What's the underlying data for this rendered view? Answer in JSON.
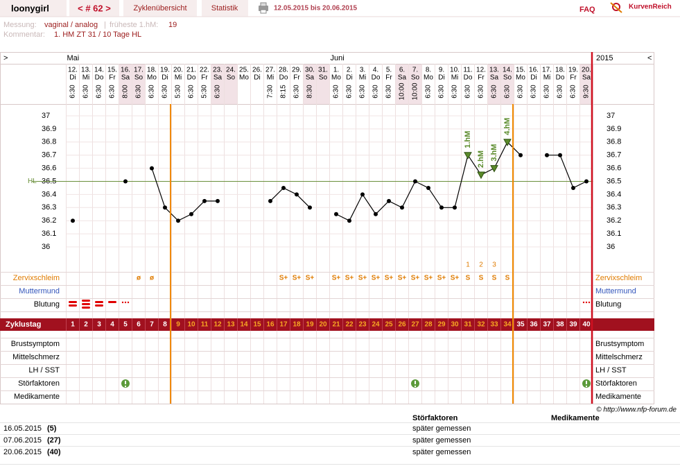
{
  "header": {
    "user": "loonygirl",
    "cycle": "< # 62 >",
    "tabs": [
      "Zyklenübersicht",
      "Statistik"
    ],
    "period": "12.05.2015 bis 20.06.2015",
    "faq": "FAQ",
    "logo": "KurvenReich"
  },
  "info": {
    "messung_label": "Messung:",
    "messung": "vaginal / analog",
    "separator": "|",
    "earliest_label": "früheste 1.hM:",
    "earliest": 19,
    "comment_label": "Kommentar:",
    "comment": "1. HM ZT 31 / 10 Tage HL"
  },
  "chart_data": {
    "type": "line",
    "nav_prev": ">",
    "nav_next": "<",
    "year": "2015",
    "months": [
      "Mai",
      null,
      null,
      null,
      null,
      null,
      null,
      null,
      null,
      null,
      null,
      null,
      null,
      null,
      null,
      null,
      null,
      null,
      null,
      null,
      "Juni",
      null,
      null,
      null,
      null,
      null,
      null,
      null,
      null,
      null,
      null,
      null,
      null,
      null,
      null,
      null,
      null,
      null,
      null,
      null
    ],
    "categories": [
      "12.",
      "13.",
      "14.",
      "15.",
      "16.",
      "17.",
      "18.",
      "19.",
      "20.",
      "21.",
      "22.",
      "23.",
      "24.",
      "25.",
      "26.",
      "27.",
      "28.",
      "29.",
      "30.",
      "31.",
      "1.",
      "2.",
      "3.",
      "4.",
      "5.",
      "6.",
      "7.",
      "8.",
      "9.",
      "10.",
      "11.",
      "12.",
      "13.",
      "14.",
      "15.",
      "16.",
      "17.",
      "18.",
      "19.",
      "20."
    ],
    "weekdays": [
      "Di",
      "Mi",
      "Do",
      "Fr",
      "Sa",
      "So",
      "Mo",
      "Di",
      "Mi",
      "Do",
      "Fr",
      "Sa",
      "So",
      "Mo",
      "Di",
      "Mi",
      "Do",
      "Fr",
      "Sa",
      "So",
      "Mo",
      "Di",
      "Mi",
      "Do",
      "Fr",
      "Sa",
      "So",
      "Mo",
      "Di",
      "Mi",
      "Do",
      "Fr",
      "Sa",
      "So",
      "Mo",
      "Di",
      "Mi",
      "Do",
      "Fr",
      "Sa"
    ],
    "column_shade": [
      null,
      null,
      null,
      null,
      "#f2e2e6",
      "#f2e2e6",
      null,
      null,
      null,
      null,
      null,
      "#f2e2e6",
      "#f2e2e6",
      null,
      null,
      null,
      null,
      null,
      "#f2e2e6",
      "#f2e2e6",
      null,
      null,
      null,
      null,
      null,
      "#f2e2e6",
      "#f2e2e6",
      null,
      null,
      null,
      null,
      null,
      "#f2e2e6",
      "#f2e2e6",
      null,
      null,
      null,
      null,
      null,
      "#f2e2e6"
    ],
    "times": [
      "6:30",
      "6:30",
      "6:30",
      "6:30",
      "8:00",
      "6:30",
      "6:30",
      "6:30",
      "5:30",
      "6:30",
      "5:30",
      "6:30",
      null,
      null,
      null,
      "7:30",
      "8:15",
      "6:30",
      "8:30",
      null,
      "6:30",
      "6:30",
      "6:30",
      "6:30",
      "6:30",
      "10:00",
      "10:00",
      "6:30",
      "6:30",
      "6:30",
      "6:30",
      "6:30",
      "6:30",
      "6:30",
      "6:30",
      "6:30",
      "6:30",
      "6:30",
      "6:30",
      "9:30"
    ],
    "series": [
      {
        "color": "#000000",
        "values": [
          36.2,
          null,
          null,
          null,
          36.5,
          null,
          36.6,
          36.3,
          36.2,
          36.25,
          36.35,
          36.35,
          null,
          null,
          null,
          36.35,
          36.45,
          36.4,
          36.3,
          null,
          36.25,
          36.2,
          36.4,
          36.25,
          36.35,
          36.3,
          36.5,
          36.45,
          36.3,
          36.3,
          36.7,
          36.55,
          36.6,
          36.8,
          36.7,
          null,
          36.7,
          36.7,
          36.45,
          36.5
        ]
      }
    ],
    "hm_labels": [
      null,
      null,
      null,
      null,
      null,
      null,
      null,
      null,
      null,
      null,
      null,
      null,
      null,
      null,
      null,
      null,
      null,
      null,
      null,
      null,
      null,
      null,
      null,
      null,
      null,
      null,
      null,
      null,
      null,
      null,
      "1.hM",
      "2.hM",
      "3.hM",
      "4.hM",
      null,
      null,
      null,
      null,
      null,
      null
    ],
    "hm_color": "#5a8a2a",
    "ylim": [
      36,
      37
    ],
    "yticks": [
      36,
      36.1,
      36.2,
      36.3,
      36.4,
      36.5,
      36.6,
      36.7,
      36.8,
      36.9,
      37
    ],
    "grid": true,
    "hl": {
      "value": 36.5,
      "label": "HL",
      "color": "#6a8f3a"
    },
    "side_rows": [
      "Zervixschleim",
      "Muttermund",
      "Blutung"
    ],
    "side_row_colors": [
      "#e07b00",
      "#3355bb",
      "#000000"
    ],
    "mucus": [
      null,
      null,
      null,
      null,
      null,
      "ø",
      "ø",
      null,
      null,
      null,
      null,
      null,
      null,
      null,
      null,
      null,
      "S+",
      "S+",
      "S+",
      null,
      "S+",
      "S+",
      "S+",
      "S+",
      "S+",
      "S+",
      "S+",
      "S+",
      "S+",
      "S+",
      "S",
      "S",
      "S",
      "S",
      null,
      null,
      null,
      null,
      null,
      null
    ],
    "mucus_numbers": [
      null,
      null,
      null,
      null,
      null,
      null,
      null,
      null,
      null,
      null,
      null,
      null,
      null,
      null,
      null,
      null,
      null,
      null,
      null,
      null,
      null,
      null,
      null,
      null,
      null,
      null,
      null,
      null,
      null,
      null,
      1,
      2,
      3,
      null,
      null,
      null,
      null,
      null,
      null,
      null
    ],
    "cycle_label": "Zyklustag",
    "cycle_days": [
      1,
      2,
      3,
      4,
      5,
      6,
      7,
      8,
      9,
      10,
      11,
      12,
      13,
      14,
      15,
      16,
      17,
      18,
      19,
      20,
      21,
      22,
      23,
      24,
      25,
      26,
      27,
      28,
      29,
      30,
      31,
      32,
      33,
      34,
      35,
      36,
      37,
      38,
      39,
      40
    ],
    "cycle_day_colors": [
      "#ffffff",
      "#ffffff",
      "#ffffff",
      "#ffffff",
      "#ffffff",
      "#ffffff",
      "#ffffff",
      "#ffffff",
      "#f7a823",
      "#f7a823",
      "#f7a823",
      "#f7a823",
      "#f7a823",
      "#f7a823",
      "#f7a823",
      "#f7a823",
      "#f7a823",
      "#f7a823",
      "#f7a823",
      "#f7a823",
      "#f7a823",
      "#f7a823",
      "#f7a823",
      "#f7a823",
      "#f7a823",
      "#f7a823",
      "#f7a823",
      "#f7a823",
      "#f7a823",
      "#f7a823",
      "#f7a823",
      "#f7a823",
      "#f7a823",
      "#f7a823",
      "#ffffff",
      "#ffffff",
      "#ffffff",
      "#ffffff",
      "#ffffff",
      "#ffffff"
    ],
    "bottom_rows": [
      "Brustsymptom",
      "Mittelschmerz",
      "LH / SST",
      "Störfaktoren",
      "Medikamente"
    ]
  },
  "footer": "© http://www.nfp-forum.de",
  "table": {
    "headers": [
      "Störfaktoren",
      "Medikamente"
    ],
    "rows": [
      [
        "16.05.2015",
        "(5)",
        "später gemessen"
      ],
      [
        "07.06.2015",
        "(27)",
        "später gemessen"
      ],
      [
        "20.06.2015",
        "(40)",
        "später gemessen"
      ]
    ]
  }
}
